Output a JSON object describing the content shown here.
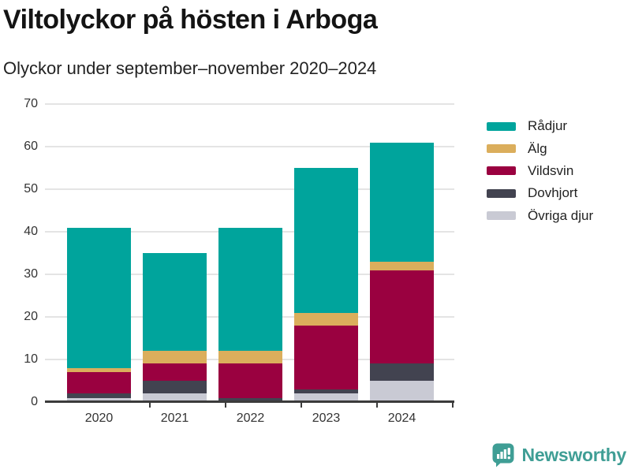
{
  "chart_data": {
    "type": "bar",
    "stacked": true,
    "title": "Viltolyckor på hösten i Arboga",
    "subtitle": "Olyckor under september–november 2020–2024",
    "categories": [
      "2020",
      "2021",
      "2022",
      "2023",
      "2024"
    ],
    "series": [
      {
        "name": "Rådjur",
        "color": "#00a49c",
        "values": [
          33,
          23,
          29,
          34,
          28
        ]
      },
      {
        "name": "Älg",
        "color": "#dbae5c",
        "values": [
          1,
          3,
          3,
          3,
          2
        ]
      },
      {
        "name": "Vildsvin",
        "color": "#9a0140",
        "values": [
          5,
          4,
          8,
          15,
          22
        ]
      },
      {
        "name": "Dovhjort",
        "color": "#424350",
        "values": [
          1,
          3,
          1,
          1,
          4
        ]
      },
      {
        "name": "Övriga djur",
        "color": "#c9cad4",
        "values": [
          1,
          2,
          0,
          2,
          5
        ]
      }
    ],
    "stack_order_bottom_to_top": [
      "Övriga djur",
      "Dovhjort",
      "Vildsvin",
      "Älg",
      "Rådjur"
    ],
    "totals": [
      41,
      35,
      41,
      55,
      61
    ],
    "ylim": [
      0,
      70
    ],
    "yticks": [
      0,
      10,
      20,
      30,
      40,
      50,
      60,
      70
    ],
    "xlabel": "",
    "ylabel": "",
    "grid": "horizontal",
    "legend_position": "top-right"
  },
  "colors": {
    "grid": "#e4e4e4",
    "axis": "#3b3b3b",
    "axis_text": "#333333",
    "title_text": "#141414",
    "brand": "#3f9e95"
  },
  "footer": {
    "brand": "Newsworthy"
  }
}
